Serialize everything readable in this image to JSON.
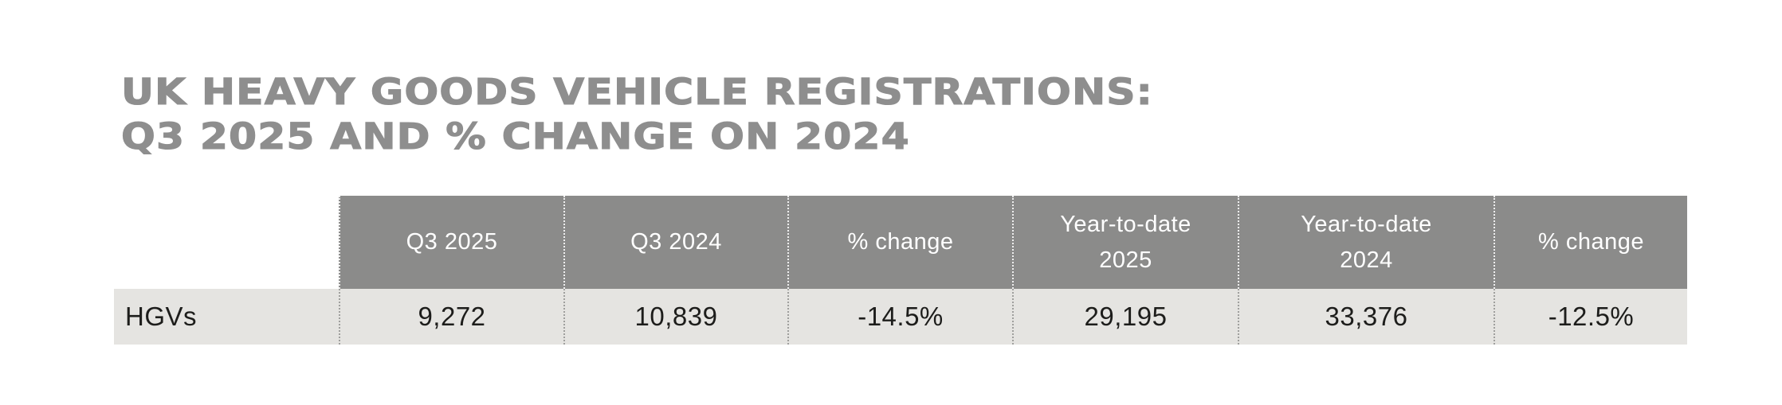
{
  "title": {
    "line1": "UK HEAVY GOODS VEHICLE REGISTRATIONS:",
    "line2": "Q3 2025 AND % CHANGE ON 2024"
  },
  "table": {
    "columns": [
      "",
      "Q3 2025",
      "Q3 2024",
      "% change",
      "Year-to-date\n2025",
      "Year-to-date\n2024",
      "% change"
    ],
    "row": {
      "label": "HGVs",
      "values": [
        "9,272",
        "10,839",
        "-14.5%",
        "29,195",
        "33,376",
        "-12.5%"
      ]
    }
  },
  "colors": {
    "title": "#8e8e8e",
    "header_bg": "#8b8b8a",
    "header_text": "#ffffff",
    "row_bg": "#e5e4e1",
    "row_text": "#1d1d1b"
  },
  "chart_data": {
    "type": "table",
    "title": "UK HEAVY GOODS VEHICLE REGISTRATIONS: Q3 2025 AND % CHANGE ON 2024",
    "columns": [
      "Q3 2025",
      "Q3 2024",
      "% change",
      "Year-to-date 2025",
      "Year-to-date 2024",
      "% change"
    ],
    "rows": [
      {
        "label": "HGVs",
        "q3_2025": 9272,
        "q3_2024": 10839,
        "q3_pct_change": -14.5,
        "ytd_2025": 29195,
        "ytd_2024": 33376,
        "ytd_pct_change": -12.5
      }
    ],
    "layout": {
      "header_style": "dark grey band, white text, dotted white column separators",
      "row_style": "light grey band, black text, dotted grey column separators",
      "first_column_header": "empty (no header above row label)"
    }
  }
}
